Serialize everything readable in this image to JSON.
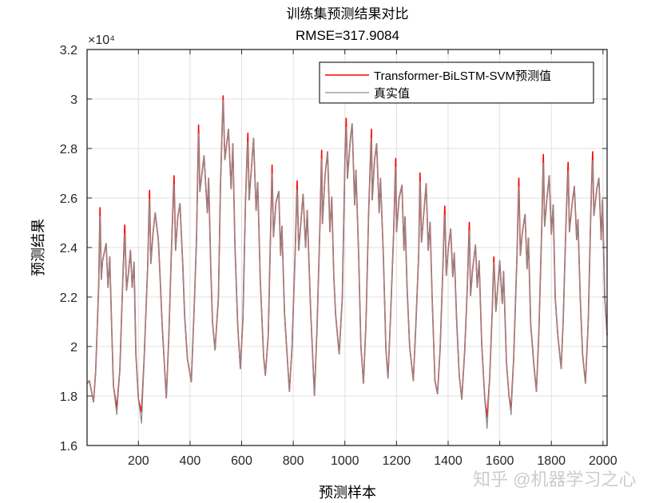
{
  "chart_data": {
    "type": "line",
    "title": "训练集预测结果对比",
    "subtitle": "RMSE=317.9084",
    "xlabel": "预测样本",
    "ylabel": "预测结果",
    "y_exponent_label": "×10⁴",
    "xlim": [
      1,
      2016
    ],
    "ylim": [
      16000,
      32000
    ],
    "xticks": [
      200,
      400,
      600,
      800,
      1000,
      1200,
      1400,
      1600,
      1800,
      2000
    ],
    "xtick_labels": [
      "200",
      "400",
      "600",
      "800",
      "1000",
      "1200",
      "1400",
      "1600",
      "1800",
      "2000"
    ],
    "yticks": [
      16000,
      18000,
      20000,
      22000,
      24000,
      26000,
      28000,
      30000,
      32000
    ],
    "ytick_labels": [
      "1.6",
      "1.8",
      "2",
      "2.2",
      "2.4",
      "2.6",
      "2.8",
      "3",
      "3.2"
    ],
    "grid": true,
    "legend_position": "top-right",
    "x": [
      1,
      10,
      26,
      34,
      46,
      51,
      56,
      61,
      75,
      82,
      89,
      97,
      103,
      116,
      128,
      138,
      147,
      154,
      161,
      169,
      176,
      183,
      190,
      200,
      212,
      222,
      236,
      243,
      248,
      256,
      265,
      277,
      284,
      292,
      308,
      318,
      328,
      338,
      344,
      352,
      361,
      372,
      379,
      390,
      405,
      415,
      425,
      433,
      438,
      454,
      467,
      472,
      480,
      487,
      497,
      510,
      518,
      528,
      535,
      549,
      559,
      566,
      574,
      585,
      595,
      605,
      615,
      624,
      629,
      646,
      656,
      662,
      672,
      685,
      692,
      703,
      718,
      723,
      733,
      744,
      751,
      756,
      766,
      785,
      795,
      807,
      815,
      821,
      838,
      848,
      854,
      867,
      882,
      892,
      903,
      910,
      913,
      923,
      933,
      942,
      949,
      957,
      964,
      978,
      990,
      1000,
      1005,
      1010,
      1021,
      1028,
      1038,
      1043,
      1053,
      1062,
      1072,
      1082,
      1092,
      1103,
      1106,
      1115,
      1123,
      1133,
      1138,
      1149,
      1159,
      1167,
      1177,
      1188,
      1197,
      1200,
      1210,
      1221,
      1229,
      1233,
      1241,
      1251,
      1265,
      1275,
      1286,
      1291,
      1297,
      1305,
      1315,
      1323,
      1330,
      1338,
      1349,
      1359,
      1369,
      1380,
      1387,
      1393,
      1400,
      1410,
      1418,
      1424,
      1433,
      1443,
      1453,
      1464,
      1474,
      1482,
      1487,
      1495,
      1506,
      1513,
      1520,
      1530,
      1542,
      1551,
      1561,
      1571,
      1577,
      1585,
      1600,
      1610,
      1615,
      1626,
      1636,
      1644,
      1654,
      1667,
      1674,
      1680,
      1688,
      1698,
      1706,
      1711,
      1720,
      1733,
      1742,
      1752,
      1763,
      1769,
      1774,
      1783,
      1792,
      1800,
      1807,
      1815,
      1825,
      1838,
      1846,
      1856,
      1865,
      1870,
      1880,
      1889,
      1898,
      1903,
      1912,
      1921,
      1932,
      1943,
      1953,
      1960,
      1965,
      1976,
      1984,
      1993,
      1998,
      2007,
      2016
    ],
    "series": [
      {
        "name": "Transformer-BiLSTM-SVM预测值",
        "color": "#ff0000",
        "values": [
          18500,
          18620,
          17760,
          18950,
          22390,
          25610,
          22710,
          23460,
          24160,
          22390,
          23620,
          20560,
          18410,
          17500,
          19050,
          22280,
          24910,
          22280,
          22930,
          23890,
          22390,
          23410,
          19700,
          17870,
          17350,
          19480,
          23250,
          26310,
          23350,
          24540,
          25400,
          24320,
          22820,
          20880,
          17920,
          20450,
          23890,
          26900,
          23890,
          25180,
          25770,
          23250,
          21260,
          19480,
          18570,
          21310,
          24320,
          28950,
          26260,
          27710,
          25400,
          26800,
          23250,
          21000,
          19860,
          21960,
          26480,
          30130,
          27550,
          28780,
          26370,
          28190,
          24100,
          20770,
          19110,
          21100,
          25930,
          28620,
          25930,
          28410,
          25500,
          26630,
          22710,
          19590,
          18840,
          20450,
          27330,
          24430,
          25830,
          26260,
          23680,
          24860,
          21310,
          18190,
          19910,
          23680,
          26690,
          23890,
          26150,
          24000,
          25500,
          21530,
          18030,
          20770,
          24750,
          27930,
          24970,
          26900,
          27870,
          24640,
          26040,
          22820,
          21310,
          19700,
          21960,
          27550,
          29220,
          26800,
          28350,
          29000,
          25720,
          27120,
          23780,
          20020,
          18520,
          21000,
          25400,
          28780,
          25930,
          27550,
          28190,
          25400,
          26800,
          23680,
          19910,
          18730,
          21200,
          24320,
          27600,
          24640,
          25990,
          26520,
          23890,
          25240,
          22390,
          20020,
          18620,
          20880,
          23780,
          27010,
          24220,
          25290,
          26580,
          23890,
          25020,
          21960,
          18620,
          18090,
          19910,
          23250,
          25670,
          22870,
          23890,
          24750,
          22820,
          23780,
          21100,
          18840,
          17870,
          19810,
          22280,
          25020,
          22060,
          23140,
          24100,
          22390,
          23460,
          20130,
          17870,
          17150,
          18730,
          21420,
          23620,
          21420,
          23460,
          21740,
          23030,
          19380,
          17980,
          17500,
          19480,
          23680,
          26800,
          23680,
          24640,
          25340,
          23140,
          24380,
          20880,
          19160,
          18190,
          20670,
          24970,
          27760,
          24860,
          25990,
          26900,
          24540,
          25720,
          21960,
          20450,
          19110,
          21100,
          24750,
          27440,
          24640,
          25720,
          26470,
          24320,
          25130,
          21960,
          19700,
          18520,
          21000,
          25400,
          27870,
          25290,
          26370,
          26800,
          24320,
          25930,
          21960,
          20450
        ]
      },
      {
        "name": "真实值",
        "color": "#8c8c8c",
        "values": [
          18500,
          18620,
          17760,
          18950,
          22390,
          25260,
          22710,
          23460,
          24160,
          22390,
          23620,
          20560,
          18410,
          17250,
          19050,
          22280,
          24560,
          22280,
          22930,
          23890,
          22390,
          23410,
          19700,
          17870,
          16900,
          19480,
          23250,
          25960,
          23350,
          24540,
          25400,
          24320,
          22820,
          20880,
          17920,
          20450,
          23890,
          26550,
          23890,
          25180,
          25770,
          23250,
          21260,
          19480,
          18570,
          21310,
          24320,
          28600,
          26260,
          27710,
          25400,
          26800,
          23250,
          21000,
          19860,
          21960,
          26480,
          29950,
          27550,
          28780,
          26370,
          28190,
          24100,
          20770,
          19110,
          21100,
          25930,
          28270,
          25930,
          28410,
          25500,
          26630,
          22710,
          19590,
          18840,
          20450,
          27000,
          24430,
          25830,
          26260,
          23680,
          24860,
          21310,
          18190,
          19910,
          23680,
          26340,
          23890,
          26150,
          24000,
          25500,
          21530,
          18030,
          20770,
          24750,
          27580,
          24970,
          26900,
          27870,
          24640,
          26040,
          22820,
          21310,
          19700,
          21960,
          27550,
          28870,
          26800,
          28350,
          29000,
          25720,
          27120,
          23780,
          20020,
          18520,
          21000,
          25400,
          28430,
          25930,
          27550,
          28190,
          25400,
          26800,
          23680,
          19910,
          18730,
          21200,
          24320,
          27250,
          24640,
          25990,
          26520,
          23890,
          25240,
          22390,
          20020,
          18620,
          20880,
          23780,
          26660,
          24220,
          25290,
          26580,
          23890,
          25020,
          21960,
          18620,
          18090,
          19910,
          23250,
          25320,
          22870,
          23890,
          24750,
          22820,
          23780,
          21100,
          18840,
          17870,
          19810,
          22280,
          24670,
          22060,
          23140,
          24100,
          22390,
          23460,
          20130,
          17870,
          16700,
          18730,
          21420,
          23400,
          21420,
          23460,
          21740,
          23030,
          19380,
          17980,
          17250,
          19480,
          23680,
          26450,
          23680,
          24640,
          25340,
          23140,
          24380,
          20880,
          19160,
          18190,
          20670,
          24970,
          27410,
          24860,
          25990,
          26900,
          24540,
          25720,
          21960,
          20450,
          19110,
          21100,
          24750,
          27090,
          24640,
          25720,
          26470,
          24320,
          25130,
          21960,
          19700,
          18520,
          21000,
          25400,
          27520,
          25290,
          26370,
          26800,
          24320,
          25930,
          21960,
          20450
        ]
      }
    ]
  },
  "watermark": "知乎 @机器学习之心"
}
